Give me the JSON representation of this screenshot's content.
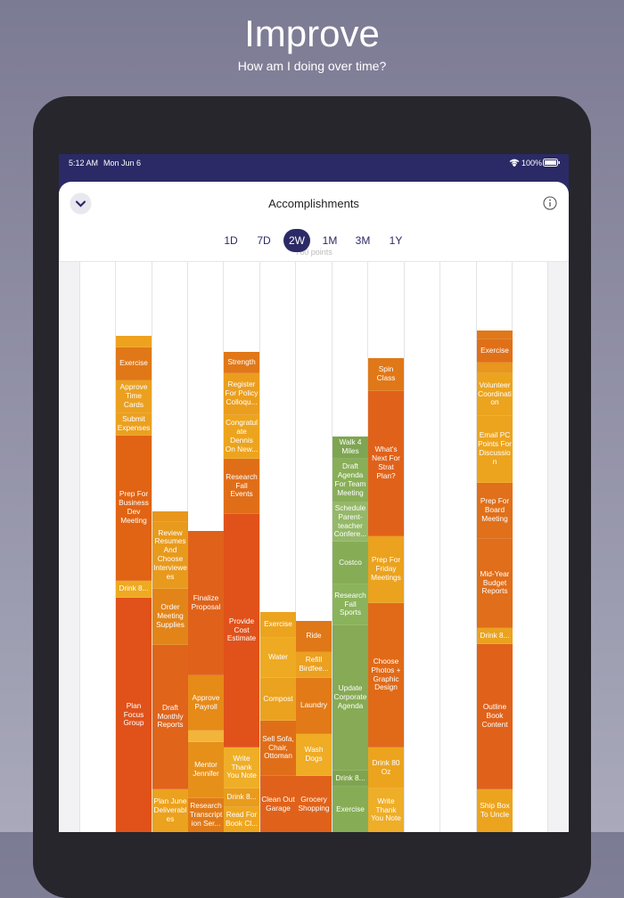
{
  "header": {
    "title": "Improve",
    "subtitle": "How am I doing over time?"
  },
  "status_bar": {
    "time": "5:12 AM",
    "date": "Mon Jun 6",
    "battery": "100%"
  },
  "sheet": {
    "title": "Accomplishments",
    "ranges": [
      "1D",
      "7D",
      "2W",
      "1M",
      "3M",
      "1Y"
    ],
    "selected": "2W",
    "total": "760 points"
  },
  "columns": [
    {
      "segments": [
        {
          "color": "#eea21e"
        },
        {
          "label": "Exercise",
          "color": "#e07818"
        },
        {
          "label": "Approve Time Cards",
          "color": "#eba020"
        },
        {
          "label": "Submit Expenses",
          "color": "#eba020"
        },
        {
          "label": "Prep For Business Dev Meeting",
          "color": "#e06414"
        },
        {
          "label": "Drink 8...",
          "color": "#eeaa22"
        },
        {
          "label": "Plan Focus Group",
          "color": "#e0521a"
        }
      ]
    },
    {
      "segments": [
        {
          "color": "#e8961c"
        },
        {
          "label": "Review Resumes And Choose Interviewees",
          "color": "#e89a1c"
        },
        {
          "label": "Order Meeting Supplies",
          "color": "#e38418"
        },
        {
          "label": "Draft Monthly Reports",
          "color": "#e0641a"
        },
        {
          "label": "Plan June Deliverables",
          "color": "#eba21e"
        }
      ]
    },
    {
      "segments": [
        {
          "label": "Finalize Proposal",
          "color": "#e0621a"
        },
        {
          "label": "Approve Payroll",
          "color": "#e68a18"
        },
        {
          "color": "#f2b43a"
        },
        {
          "label": "Mentor Jennifer",
          "color": "#e6901a"
        },
        {
          "label": "Research Transcription Ser...",
          "color": "#e07a18"
        }
      ]
    },
    {
      "segments": [
        {
          "label": "Strength",
          "color": "#e07818"
        },
        {
          "label": "Register For Policy Colloqu...",
          "color": "#eb9e1e"
        },
        {
          "label": "Congratulate Dennis On New...",
          "color": "#eca41e"
        },
        {
          "label": "Research Fall Events",
          "color": "#e06e18"
        },
        {
          "label": "Provide Cost Estimate",
          "color": "#e0521a"
        },
        {
          "label": "Write Thank You Note",
          "color": "#efae28"
        },
        {
          "label": "Drink 8...",
          "color": "#e89c1e"
        },
        {
          "label": "Read For Book Cl...",
          "color": "#eea620"
        }
      ]
    },
    {
      "segments": [
        {
          "label": "Exercise",
          "color": "#eca41e"
        },
        {
          "label": "Water",
          "color": "#eeaa22"
        },
        {
          "label": "Compost",
          "color": "#eba21e"
        },
        {
          "label": "Sell Sofa, Chair, Ottoman",
          "color": "#e06e18"
        },
        {
          "label": "Clean Out Garage",
          "color": "#e0621a"
        }
      ]
    },
    {
      "segments": [
        {
          "label": "Ride",
          "color": "#e07818"
        },
        {
          "label": "Refill Birdfee...",
          "color": "#eba020"
        },
        {
          "label": "Laundry",
          "color": "#e37a18"
        },
        {
          "label": "Wash Dogs",
          "color": "#efac24"
        },
        {
          "label": "Grocery Shopping",
          "color": "#e0621a"
        }
      ]
    },
    {
      "segments": [
        {
          "label": "Walk 4 Miles",
          "color": "#7ea552"
        },
        {
          "label": "Draft Agenda For Team Meeting",
          "color": "#88ae58"
        },
        {
          "label": "Schedule Parent-teacher Confere...",
          "color": "#94b868"
        },
        {
          "label": "Costco",
          "color": "#86ad55"
        },
        {
          "label": "Research Fall Sports",
          "color": "#8ab35c"
        },
        {
          "label": "Update Corporate Agenda",
          "color": "#86aa55"
        },
        {
          "label": "Drink 8...",
          "color": "#7fa450"
        },
        {
          "label": "Exercise",
          "color": "#86ad55"
        }
      ]
    },
    {
      "segments": [
        {
          "label": "Spin Class",
          "color": "#e07818"
        },
        {
          "label": "What's Next For Strat Plan?",
          "color": "#e0621a"
        },
        {
          "label": "Prep For Friday Meetings",
          "color": "#eba21e"
        },
        {
          "label": "Choose Photos + Graphic Design",
          "color": "#e06a18"
        },
        {
          "label": "Drink 80 Oz",
          "color": "#eca41e"
        },
        {
          "label": "Write Thank You Note",
          "color": "#efae28"
        }
      ]
    },
    {
      "segments": [
        {
          "color": "#e07818"
        },
        {
          "label": "Exercise",
          "color": "#e07018"
        },
        {
          "color": "#e8961c"
        },
        {
          "label": "Volunteer Coordination",
          "color": "#eca41e"
        },
        {
          "label": "Email PC Points For Discussion",
          "color": "#eca41e"
        },
        {
          "label": "Prep For Board Meeting",
          "color": "#e0701a"
        },
        {
          "label": "Mid-Year Budget Reports",
          "color": "#e06e1a"
        },
        {
          "label": "Drink 8...",
          "color": "#eba21e"
        },
        {
          "label": "Outline Book Content",
          "color": "#e0621a"
        },
        {
          "label": "Ship Box To Uncle",
          "color": "#eca41e"
        }
      ]
    }
  ]
}
